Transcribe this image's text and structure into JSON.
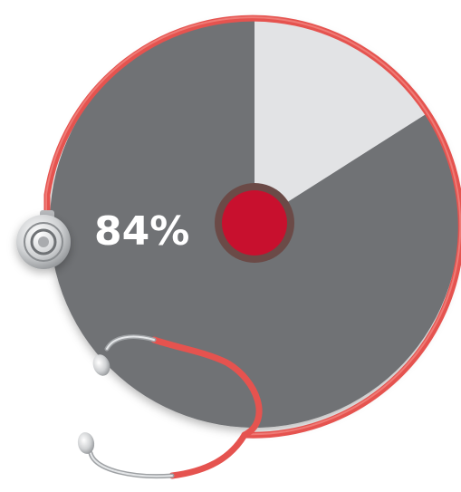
{
  "chart_data": {
    "type": "pie",
    "slices": [
      {
        "value": 84,
        "color": "#707275"
      },
      {
        "value": 16,
        "color": "#e2e3e5"
      }
    ],
    "label": "84%",
    "colors": {
      "tube": "#e5534f",
      "tube_highlight": "#f48b86",
      "center_dot": "#c8102e",
      "center_ring": "#6b4a47",
      "metal": "#d0d2d4"
    }
  }
}
